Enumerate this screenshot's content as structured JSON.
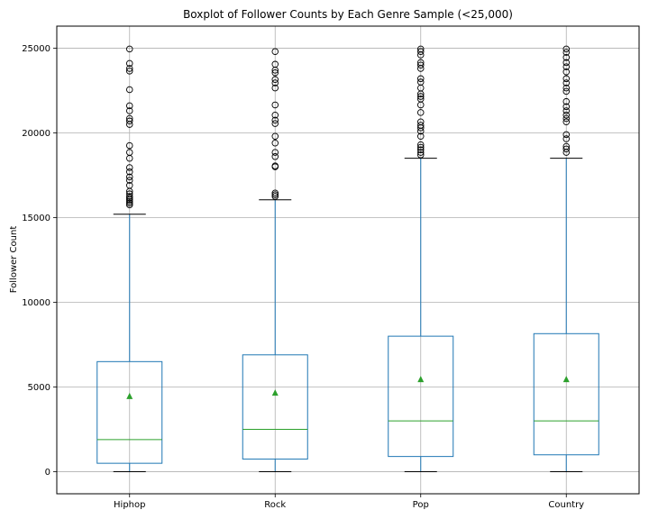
{
  "chart_data": {
    "type": "box",
    "title": "Boxplot of Follower Counts by Each Genre Sample (<25,000)",
    "xlabel": "",
    "ylabel": "Follower Count",
    "ylim": [
      -1300,
      26300
    ],
    "yticks": [
      0,
      5000,
      10000,
      15000,
      20000,
      25000
    ],
    "grid": true,
    "colors": {
      "box": "#1f77b4",
      "median": "#2ca02c",
      "mean": "#2ca02c",
      "cap": "#000000",
      "flier": "#000000",
      "grid": "#b0b0b0"
    },
    "categories": [
      "Hiphop",
      "Rock",
      "Pop",
      "Country"
    ],
    "series": [
      {
        "category": "Hiphop",
        "whisker_low": 0,
        "q1": 500,
        "median": 1900,
        "q3": 6500,
        "whisker_high": 15200,
        "mean": 4450,
        "outliers": [
          15750,
          15850,
          15950,
          16050,
          16150,
          16250,
          16400,
          16550,
          16900,
          17200,
          17400,
          17700,
          17950,
          18500,
          18850,
          19250,
          20500,
          20700,
          20850,
          21300,
          21600,
          22550,
          23650,
          23800,
          24100,
          24950
        ]
      },
      {
        "category": "Rock",
        "whisker_low": 0,
        "q1": 750,
        "median": 2500,
        "q3": 6900,
        "whisker_high": 16050,
        "mean": 4650,
        "outliers": [
          16250,
          16350,
          16450,
          18000,
          18050,
          18600,
          18850,
          19400,
          19800,
          20550,
          20750,
          21050,
          21650,
          22650,
          22950,
          23150,
          23550,
          23700,
          24050,
          24800
        ]
      },
      {
        "category": "Pop",
        "whisker_low": 0,
        "q1": 900,
        "median": 3000,
        "q3": 8000,
        "whisker_high": 18500,
        "mean": 5450,
        "outliers": [
          18700,
          18850,
          19000,
          19150,
          19300,
          19800,
          20100,
          20300,
          20450,
          20650,
          21200,
          21650,
          22000,
          22150,
          22300,
          22650,
          23000,
          23200,
          23800,
          24000,
          24150,
          24600,
          24800,
          24950
        ]
      },
      {
        "category": "Country",
        "whisker_low": 0,
        "q1": 1000,
        "median": 3000,
        "q3": 8150,
        "whisker_high": 18500,
        "mean": 5450,
        "outliers": [
          18850,
          19050,
          19200,
          19650,
          19900,
          20650,
          20850,
          21050,
          21300,
          21550,
          21850,
          22450,
          22650,
          22950,
          23200,
          23600,
          23900,
          24150,
          24450,
          24750,
          24950
        ]
      }
    ]
  }
}
